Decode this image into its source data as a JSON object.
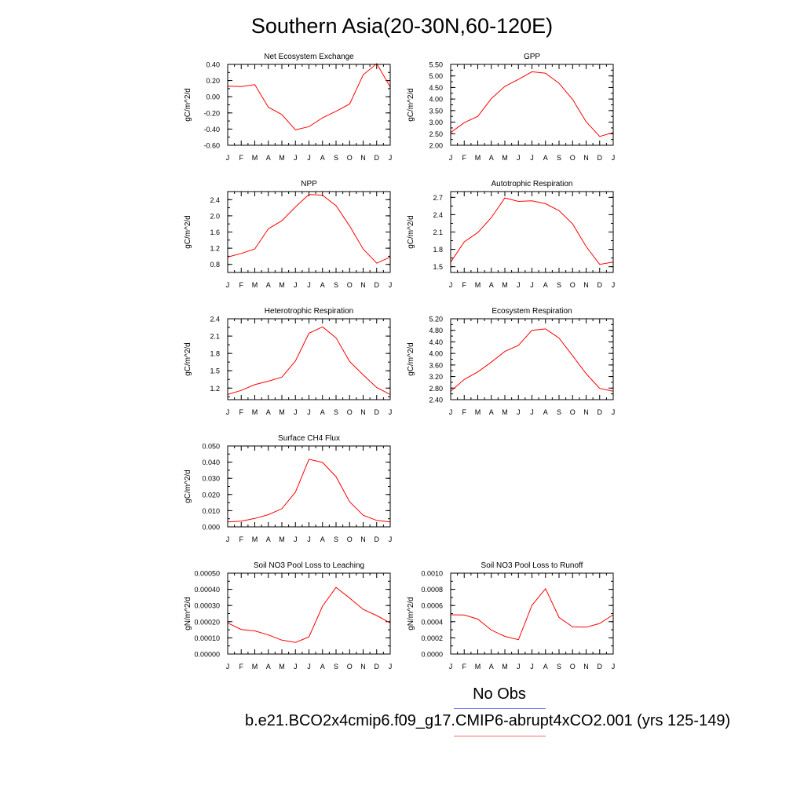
{
  "title": "Southern Asia(20-30N,60-120E)",
  "legend": {
    "obs_label": "No Obs",
    "model_label": "b.e21.BCO2x4cmip6.f09_g17.CMIP6-abrupt4xCO2.001 (yrs 125-149)",
    "obs_color": "#6b6bff",
    "model_color": "#ff6b6b"
  },
  "chart_data": [
    {
      "type": "line",
      "title": "Net Ecosystem Exchange",
      "ylabel": "gC/m^2/d",
      "categories": [
        "J",
        "F",
        "M",
        "A",
        "M",
        "J",
        "J",
        "A",
        "S",
        "O",
        "N",
        "D",
        "J"
      ],
      "ylim": [
        -0.6,
        0.4
      ],
      "yticks": [
        "0.40",
        "0.20",
        "0.00",
        "-0.20",
        "-0.40",
        "-0.60"
      ],
      "ytick_values": [
        0.4,
        0.2,
        0.0,
        -0.2,
        -0.4,
        -0.6
      ],
      "series": [
        {
          "values": [
            0.13,
            0.125,
            0.15,
            -0.13,
            -0.22,
            -0.41,
            -0.37,
            -0.26,
            -0.18,
            -0.09,
            0.27,
            0.41,
            0.12
          ],
          "color": "#ff0000"
        }
      ]
    },
    {
      "type": "line",
      "title": "GPP",
      "ylabel": "gC/m^2/d",
      "categories": [
        "J",
        "F",
        "M",
        "A",
        "M",
        "J",
        "J",
        "A",
        "S",
        "O",
        "N",
        "D",
        "J"
      ],
      "ylim": [
        2.0,
        5.5
      ],
      "yticks": [
        "5.50",
        "5.00",
        "4.50",
        "4.00",
        "3.50",
        "3.00",
        "2.50",
        "2.00"
      ],
      "ytick_values": [
        5.5,
        5.0,
        4.5,
        4.0,
        3.5,
        3.0,
        2.5,
        2.0
      ],
      "series": [
        {
          "values": [
            2.55,
            2.98,
            3.25,
            4.02,
            4.55,
            4.85,
            5.18,
            5.12,
            4.68,
            3.98,
            3.02,
            2.38,
            2.55
          ],
          "color": "#ff0000"
        }
      ]
    },
    {
      "type": "line",
      "title": "NPP",
      "ylabel": "gC/m^2/d",
      "categories": [
        "J",
        "F",
        "M",
        "A",
        "M",
        "J",
        "J",
        "A",
        "S",
        "O",
        "N",
        "D",
        "J"
      ],
      "ylim": [
        0.6,
        2.6
      ],
      "yticks": [
        "2.4",
        "2.0",
        "1.6",
        "1.2",
        "0.8"
      ],
      "ytick_values": [
        2.4,
        2.0,
        1.6,
        1.2,
        0.8
      ],
      "series": [
        {
          "values": [
            0.98,
            1.07,
            1.18,
            1.68,
            1.88,
            2.22,
            2.53,
            2.51,
            2.25,
            1.75,
            1.18,
            0.83,
            0.98
          ],
          "color": "#ff0000"
        }
      ]
    },
    {
      "type": "line",
      "title": "Autotrophic Respiration",
      "ylabel": "gC/m^2/d",
      "categories": [
        "J",
        "F",
        "M",
        "A",
        "M",
        "J",
        "J",
        "A",
        "S",
        "O",
        "N",
        "D",
        "J"
      ],
      "ylim": [
        1.4,
        2.8
      ],
      "yticks": [
        "2.7",
        "2.4",
        "2.1",
        "1.8",
        "1.5"
      ],
      "ytick_values": [
        2.7,
        2.4,
        2.1,
        1.8,
        1.5
      ],
      "series": [
        {
          "values": [
            1.58,
            1.93,
            2.09,
            2.35,
            2.69,
            2.63,
            2.64,
            2.59,
            2.47,
            2.24,
            1.85,
            1.54,
            1.58
          ],
          "color": "#ff0000"
        }
      ]
    },
    {
      "type": "line",
      "title": "Heterotrophic Respiration",
      "ylabel": "gC/m^2/d",
      "categories": [
        "J",
        "F",
        "M",
        "A",
        "M",
        "J",
        "J",
        "A",
        "S",
        "O",
        "N",
        "D",
        "J"
      ],
      "ylim": [
        1.0,
        2.4
      ],
      "yticks": [
        "2.4",
        "2.1",
        "1.8",
        "1.5",
        "1.2"
      ],
      "ytick_values": [
        2.4,
        2.1,
        1.8,
        1.5,
        1.2
      ],
      "series": [
        {
          "values": [
            1.09,
            1.16,
            1.26,
            1.32,
            1.39,
            1.67,
            2.15,
            2.26,
            2.07,
            1.66,
            1.43,
            1.21,
            1.09
          ],
          "color": "#ff0000"
        }
      ]
    },
    {
      "type": "line",
      "title": "Ecosystem Respiration",
      "ylabel": "gC/m^2/d",
      "categories": [
        "J",
        "F",
        "M",
        "A",
        "M",
        "J",
        "J",
        "A",
        "S",
        "O",
        "N",
        "D",
        "J"
      ],
      "ylim": [
        2.4,
        5.2
      ],
      "yticks": [
        "5.20",
        "4.80",
        "4.40",
        "4.00",
        "3.60",
        "3.20",
        "2.80",
        "2.40"
      ],
      "ytick_values": [
        5.2,
        4.8,
        4.4,
        4.0,
        3.6,
        3.2,
        2.8,
        2.4
      ],
      "series": [
        {
          "values": [
            2.69,
            3.1,
            3.36,
            3.7,
            4.07,
            4.28,
            4.8,
            4.85,
            4.53,
            3.92,
            3.3,
            2.79,
            2.69
          ],
          "color": "#ff0000"
        }
      ]
    },
    {
      "type": "line",
      "title": "Surface CH4 Flux",
      "ylabel": "gC/m^2/d",
      "categories": [
        "J",
        "F",
        "M",
        "A",
        "M",
        "J",
        "J",
        "A",
        "S",
        "O",
        "N",
        "D",
        "J"
      ],
      "ylim": [
        0.0,
        0.05
      ],
      "yticks": [
        "0.050",
        "0.040",
        "0.030",
        "0.020",
        "0.010",
        "0.000"
      ],
      "ytick_values": [
        0.05,
        0.04,
        0.03,
        0.02,
        0.01,
        0.0
      ],
      "series": [
        {
          "values": [
            0.003,
            0.0035,
            0.0052,
            0.0075,
            0.0112,
            0.0215,
            0.0418,
            0.0398,
            0.031,
            0.0155,
            0.0072,
            0.004,
            0.003
          ],
          "color": "#ff0000"
        }
      ]
    },
    {
      "type": "line",
      "title": "Soil NO3 Pool Loss to Leaching",
      "ylabel": "gN/m^2/d",
      "categories": [
        "J",
        "F",
        "M",
        "A",
        "M",
        "J",
        "J",
        "A",
        "S",
        "O",
        "N",
        "D",
        "J"
      ],
      "ylim": [
        0.0,
        0.0005
      ],
      "yticks": [
        "0.00050",
        "0.00040",
        "0.00030",
        "0.00020",
        "0.00010",
        "0.00000"
      ],
      "ytick_values": [
        0.0005,
        0.0004,
        0.0003,
        0.0002,
        0.0001,
        0.0
      ],
      "series": [
        {
          "values": [
            0.000192,
            0.000152,
            0.000143,
            0.000118,
            8.6e-05,
            7.2e-05,
            0.000106,
            0.000296,
            0.000412,
            0.000346,
            0.000276,
            0.000238,
            0.000192
          ],
          "color": "#ff0000"
        }
      ]
    },
    {
      "type": "line",
      "title": "Soil NO3 Pool Loss to Runoff",
      "ylabel": "gN/m^2/d",
      "categories": [
        "J",
        "F",
        "M",
        "A",
        "M",
        "J",
        "J",
        "A",
        "S",
        "O",
        "N",
        "D",
        "J"
      ],
      "ylim": [
        0.0,
        0.001
      ],
      "yticks": [
        "0.0010",
        "0.0008",
        "0.0006",
        "0.0004",
        "0.0002",
        "0.0000"
      ],
      "ytick_values": [
        0.001,
        0.0008,
        0.0006,
        0.0004,
        0.0002,
        0.0
      ],
      "series": [
        {
          "values": [
            0.000485,
            0.000483,
            0.000432,
            0.000296,
            0.000218,
            0.000178,
            0.000602,
            0.000808,
            0.000452,
            0.000336,
            0.000332,
            0.000378,
            0.000485
          ],
          "color": "#ff0000"
        }
      ]
    }
  ]
}
